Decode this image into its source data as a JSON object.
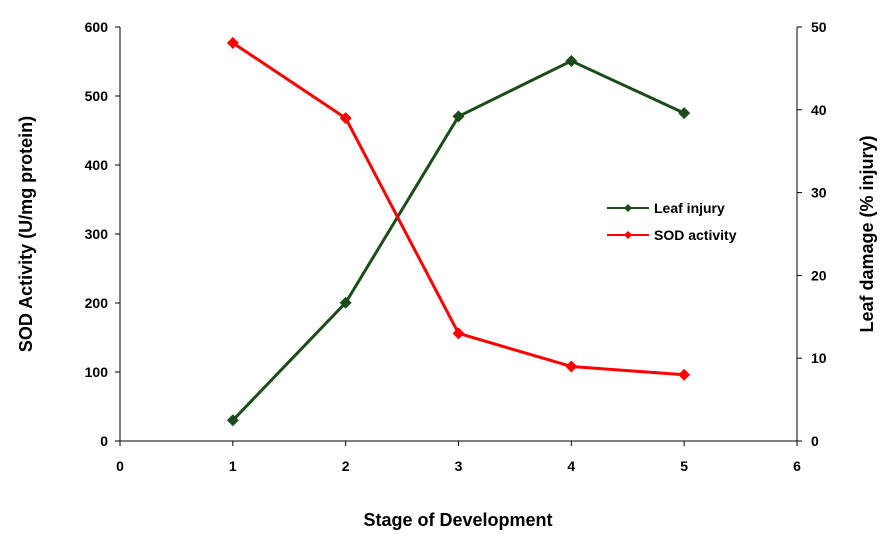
{
  "chart_data": {
    "type": "line",
    "title": "",
    "xlabel": "Stage of Development",
    "ylabel_left": "SOD Activity (U/mg protein)",
    "ylabel_right": "Leaf damage (% injury)",
    "xlim": [
      0,
      6
    ],
    "ylim_left": [
      0,
      600
    ],
    "ylim_right": [
      0,
      50
    ],
    "x_ticks": [
      "0",
      "1",
      "2",
      "3",
      "4",
      "5",
      "6"
    ],
    "y_left_ticks": [
      "0",
      "100",
      "200",
      "300",
      "400",
      "500",
      "600"
    ],
    "y_right_ticks": [
      "0",
      "10",
      "20",
      "30",
      "40",
      "50"
    ],
    "grid": false,
    "legend_position": "center-right",
    "series": [
      {
        "name": "Leaf injury",
        "axis": "right",
        "color": "#1a4d1a",
        "marker": "diamond",
        "x": [
          1,
          2,
          3,
          4,
          5
        ],
        "y": [
          2.5,
          16.7,
          39.2,
          45.9,
          39.6
        ]
      },
      {
        "name": "SOD activity",
        "axis": "left",
        "color": "#ff0000",
        "marker": "diamond",
        "x": [
          1,
          2,
          3,
          4,
          5
        ],
        "y": [
          577,
          468,
          156,
          108,
          96
        ]
      }
    ]
  }
}
